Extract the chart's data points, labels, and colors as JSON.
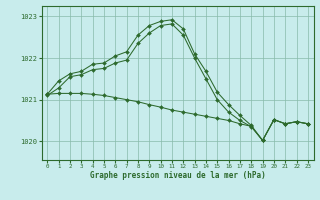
{
  "bg_color": "#c8ecec",
  "grid_color": "#88bbaa",
  "line_color": "#2d6a2d",
  "spine_color": "#2d6a2d",
  "ylim": [
    1019.55,
    1023.25
  ],
  "xlim": [
    -0.5,
    23.5
  ],
  "yticks": [
    1020,
    1021,
    1022,
    1023
  ],
  "xticks": [
    0,
    1,
    2,
    3,
    4,
    5,
    6,
    7,
    8,
    9,
    10,
    11,
    12,
    13,
    14,
    15,
    16,
    17,
    18,
    19,
    20,
    21,
    22,
    23
  ],
  "xlabel": "Graphe pression niveau de la mer (hPa)",
  "series_upper_x": [
    0,
    1,
    2,
    3,
    4,
    5,
    6,
    7,
    8,
    9,
    10,
    11,
    12,
    13,
    14,
    15,
    16,
    17,
    18,
    19,
    20,
    21,
    22,
    23
  ],
  "series_upper_y": [
    1021.13,
    1021.45,
    1021.62,
    1021.68,
    1021.85,
    1021.88,
    1022.05,
    1022.15,
    1022.55,
    1022.78,
    1022.88,
    1022.92,
    1022.7,
    1022.1,
    1021.68,
    1021.18,
    1020.88,
    1020.62,
    1020.38,
    1020.02,
    1020.52,
    1020.42,
    1020.47,
    1020.42
  ],
  "series_middle_x": [
    0,
    1,
    2,
    3,
    4,
    5,
    6,
    7,
    8,
    9,
    10,
    11,
    12,
    13,
    14,
    15,
    16,
    17,
    18,
    19,
    20,
    21,
    22,
    23
  ],
  "series_middle_y": [
    1021.1,
    1021.28,
    1021.55,
    1021.6,
    1021.72,
    1021.75,
    1021.88,
    1021.95,
    1022.35,
    1022.6,
    1022.78,
    1022.82,
    1022.55,
    1022.0,
    1021.5,
    1021.0,
    1020.7,
    1020.5,
    1020.35,
    1020.02,
    1020.52,
    1020.42,
    1020.47,
    1020.42
  ],
  "series_lower_x": [
    0,
    1,
    2,
    3,
    4,
    5,
    6,
    7,
    8,
    9,
    10,
    11,
    12,
    13,
    14,
    15,
    16,
    17,
    18,
    19,
    20,
    21,
    22,
    23
  ],
  "series_lower_y": [
    1021.13,
    1021.15,
    1021.15,
    1021.15,
    1021.13,
    1021.1,
    1021.05,
    1021.0,
    1020.95,
    1020.88,
    1020.82,
    1020.75,
    1020.7,
    1020.65,
    1020.6,
    1020.55,
    1020.5,
    1020.42,
    1020.36,
    1020.02,
    1020.52,
    1020.42,
    1020.47,
    1020.42
  ]
}
